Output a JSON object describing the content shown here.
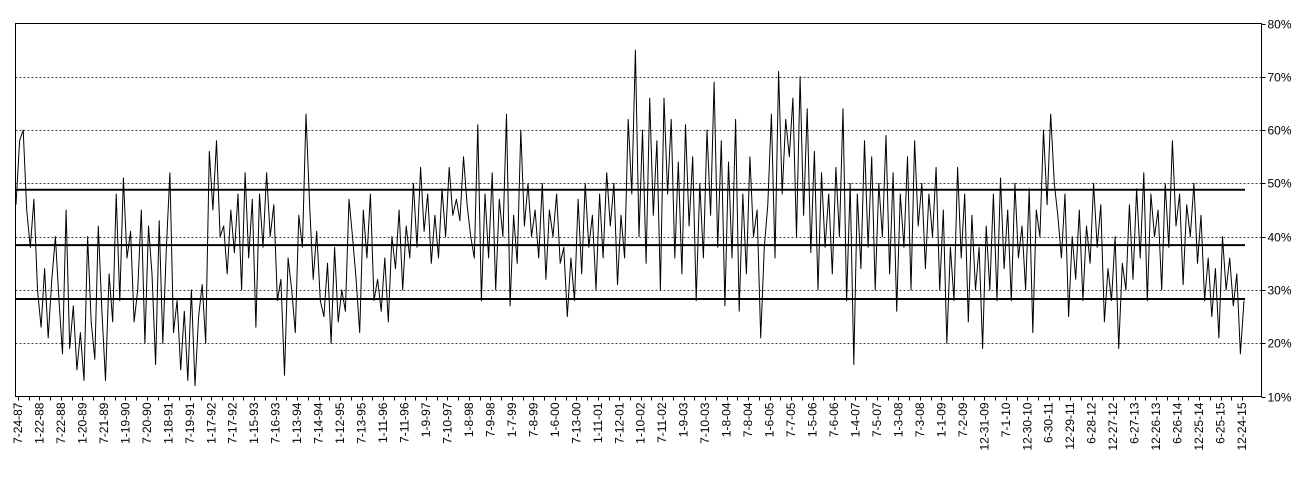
{
  "chart_data": {
    "type": "line",
    "title": "",
    "xlabel": "",
    "ylabel": "",
    "ylim": [
      0.1,
      0.8
    ],
    "y_axis_side": "right",
    "y_ticks": [
      0.1,
      0.2,
      0.3,
      0.4,
      0.5,
      0.6,
      0.7,
      0.8
    ],
    "y_tick_labels": [
      "10%",
      "20%",
      "30%",
      "40%",
      "50%",
      "60%",
      "70%",
      "80%"
    ],
    "x_tick_labels": [
      "7-24-87",
      "1-22-88",
      "7-22-88",
      "1-20-89",
      "7-21-89",
      "1-19-90",
      "7-20-90",
      "1-18-91",
      "7-19-91",
      "1-17-92",
      "7-17-92",
      "1-15-93",
      "7-16-93",
      "1-13-94",
      "7-14-94",
      "1-12-95",
      "7-13-95",
      "1-11-96",
      "7-11-96",
      "1-9-97",
      "7-10-97",
      "1-8-98",
      "7-9-98",
      "1-7-99",
      "7-8-99",
      "1-6-00",
      "7-13-00",
      "1-11-01",
      "7-12-01",
      "1-10-02",
      "7-11-02",
      "1-9-03",
      "7-10-03",
      "1-8-04",
      "7-8-04",
      "1-6-05",
      "7-7-05",
      "1-5-06",
      "7-6-06",
      "1-4-07",
      "7-5-07",
      "1-3-08",
      "7-3-08",
      "1-1-09",
      "7-2-09",
      "12-31-09",
      "7-1-10",
      "12-30-10",
      "6-30-11",
      "12-29-11",
      "6-28-12",
      "12-27-12",
      "6-27-13",
      "12-26-13",
      "6-26-14",
      "12-25-14",
      "6-25-15",
      "12-24-15"
    ],
    "grid": "horizontal dashed",
    "reference_lines": [
      0.488,
      0.384,
      0.283
    ],
    "colors": {
      "line": "#000000",
      "grid": "#000000",
      "reference": "#000000"
    },
    "series": [
      {
        "values": [
          0.46,
          0.58,
          0.6,
          0.45,
          0.38,
          0.47,
          0.3,
          0.23,
          0.34,
          0.21,
          0.32,
          0.4,
          0.28,
          0.18,
          0.45,
          0.19,
          0.27,
          0.15,
          0.22,
          0.13,
          0.4,
          0.24,
          0.17,
          0.42,
          0.26,
          0.13,
          0.33,
          0.24,
          0.48,
          0.28,
          0.51,
          0.36,
          0.41,
          0.24,
          0.3,
          0.45,
          0.2,
          0.42,
          0.33,
          0.16,
          0.43,
          0.2,
          0.38,
          0.52,
          0.22,
          0.28,
          0.15,
          0.26,
          0.13,
          0.3,
          0.12,
          0.25,
          0.31,
          0.2,
          0.56,
          0.45,
          0.58,
          0.4,
          0.42,
          0.33,
          0.45,
          0.37,
          0.48,
          0.3,
          0.52,
          0.36,
          0.47,
          0.23,
          0.48,
          0.38,
          0.52,
          0.4,
          0.46,
          0.28,
          0.32,
          0.14,
          0.36,
          0.3,
          0.22,
          0.44,
          0.38,
          0.63,
          0.46,
          0.32,
          0.41,
          0.28,
          0.25,
          0.35,
          0.2,
          0.38,
          0.24,
          0.3,
          0.26,
          0.47,
          0.4,
          0.32,
          0.22,
          0.45,
          0.36,
          0.48,
          0.28,
          0.32,
          0.26,
          0.36,
          0.24,
          0.4,
          0.34,
          0.45,
          0.3,
          0.42,
          0.36,
          0.5,
          0.38,
          0.53,
          0.41,
          0.48,
          0.35,
          0.44,
          0.36,
          0.49,
          0.4,
          0.53,
          0.44,
          0.47,
          0.43,
          0.55,
          0.46,
          0.4,
          0.36,
          0.61,
          0.28,
          0.48,
          0.36,
          0.52,
          0.3,
          0.47,
          0.4,
          0.63,
          0.27,
          0.44,
          0.35,
          0.6,
          0.42,
          0.5,
          0.4,
          0.45,
          0.36,
          0.5,
          0.32,
          0.45,
          0.4,
          0.48,
          0.35,
          0.38,
          0.25,
          0.36,
          0.28,
          0.47,
          0.33,
          0.5,
          0.38,
          0.44,
          0.3,
          0.48,
          0.36,
          0.52,
          0.42,
          0.5,
          0.31,
          0.44,
          0.36,
          0.62,
          0.48,
          0.75,
          0.4,
          0.6,
          0.35,
          0.66,
          0.44,
          0.58,
          0.3,
          0.66,
          0.48,
          0.62,
          0.36,
          0.54,
          0.33,
          0.61,
          0.42,
          0.55,
          0.28,
          0.5,
          0.36,
          0.6,
          0.44,
          0.69,
          0.38,
          0.58,
          0.27,
          0.54,
          0.36,
          0.62,
          0.26,
          0.48,
          0.33,
          0.55,
          0.4,
          0.45,
          0.21,
          0.38,
          0.46,
          0.63,
          0.36,
          0.71,
          0.48,
          0.62,
          0.55,
          0.66,
          0.4,
          0.7,
          0.44,
          0.64,
          0.37,
          0.56,
          0.3,
          0.52,
          0.38,
          0.48,
          0.33,
          0.53,
          0.4,
          0.64,
          0.28,
          0.5,
          0.16,
          0.48,
          0.34,
          0.58,
          0.38,
          0.55,
          0.3,
          0.5,
          0.4,
          0.59,
          0.33,
          0.52,
          0.26,
          0.48,
          0.38,
          0.55,
          0.3,
          0.58,
          0.42,
          0.5,
          0.34,
          0.48,
          0.4,
          0.53,
          0.3,
          0.45,
          0.2,
          0.38,
          0.28,
          0.53,
          0.36,
          0.48,
          0.24,
          0.44,
          0.3,
          0.38,
          0.19,
          0.42,
          0.3,
          0.48,
          0.28,
          0.51,
          0.34,
          0.45,
          0.28,
          0.5,
          0.36,
          0.42,
          0.3,
          0.49,
          0.22,
          0.45,
          0.4,
          0.6,
          0.46,
          0.63,
          0.5,
          0.44,
          0.36,
          0.48,
          0.25,
          0.4,
          0.32,
          0.45,
          0.28,
          0.42,
          0.35,
          0.5,
          0.38,
          0.46,
          0.24,
          0.34,
          0.28,
          0.4,
          0.19,
          0.35,
          0.3,
          0.46,
          0.32,
          0.49,
          0.36,
          0.52,
          0.28,
          0.48,
          0.4,
          0.45,
          0.3,
          0.5,
          0.38,
          0.58,
          0.42,
          0.48,
          0.31,
          0.46,
          0.4,
          0.5,
          0.35,
          0.44,
          0.28,
          0.36,
          0.25,
          0.34,
          0.21,
          0.4,
          0.3,
          0.36,
          0.27,
          0.33,
          0.18,
          0.28
        ]
      }
    ]
  }
}
